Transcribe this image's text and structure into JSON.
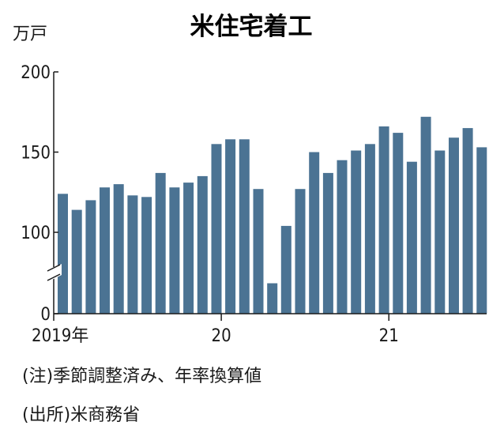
{
  "chart_data": {
    "type": "bar",
    "title": "米住宅着工",
    "unit": "万戸",
    "ylim": [
      0,
      200
    ],
    "axis_break": [
      0,
      100
    ],
    "yticks": [
      {
        "value": 200,
        "label": "200"
      },
      {
        "value": 150,
        "label": "150"
      },
      {
        "value": 100,
        "label": "100"
      },
      {
        "value": 0,
        "label": "0"
      }
    ],
    "xticks": [
      {
        "index": 0,
        "label": "2019年"
      },
      {
        "index": 12,
        "label": "20"
      },
      {
        "index": 24,
        "label": "21"
      }
    ],
    "color": "#4b7393",
    "values": [
      124,
      114,
      120,
      128,
      130,
      123,
      122,
      137,
      128,
      131,
      135,
      155,
      158,
      158,
      127,
      94,
      104,
      127,
      150,
      137,
      145,
      151,
      155,
      166,
      162,
      144,
      172,
      151,
      159,
      165,
      153
    ],
    "notes": [
      "(注)季節調整済み、年率換算値",
      "(出所)米商務省"
    ]
  }
}
